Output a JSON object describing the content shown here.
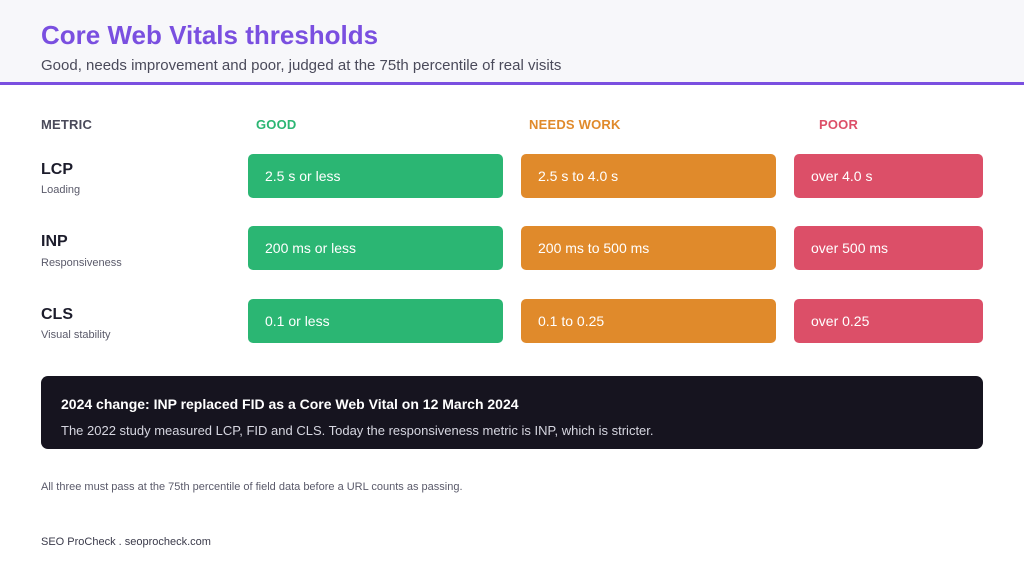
{
  "header": {
    "title": "Core Web Vitals thresholds",
    "subtitle": "Good, needs improvement and poor, judged at the 75th percentile of real visits"
  },
  "columns": {
    "metric": "METRIC",
    "good": "GOOD",
    "needs_work": "NEEDS WORK",
    "poor": "POOR"
  },
  "colors": {
    "accent": "#7a4fe0",
    "good": "#2bb673",
    "needs_work": "#e08a2b",
    "poor": "#dc4f68",
    "callout_bg": "#16141f"
  },
  "rows": [
    {
      "metric": "LCP",
      "description": "Loading",
      "good": "2.5 s or less",
      "needs_work": "2.5 s to 4.0 s",
      "poor": "over 4.0 s"
    },
    {
      "metric": "INP",
      "description": "Responsiveness",
      "good": "200 ms or less",
      "needs_work": "200 ms to 500 ms",
      "poor": "over 500 ms"
    },
    {
      "metric": "CLS",
      "description": "Visual stability",
      "good": "0.1 or less",
      "needs_work": "0.1 to 0.25",
      "poor": "over 0.25"
    }
  ],
  "callout": {
    "title": "2024 change: INP replaced FID as a Core Web Vital on 12 March 2024",
    "body": "The 2022 study measured LCP, FID and CLS. Today the responsiveness metric is INP, which is stricter."
  },
  "footnote": "All three must pass at the 75th percentile of field data before a URL counts as passing.",
  "brand": "SEO ProCheck . seoprocheck.com"
}
